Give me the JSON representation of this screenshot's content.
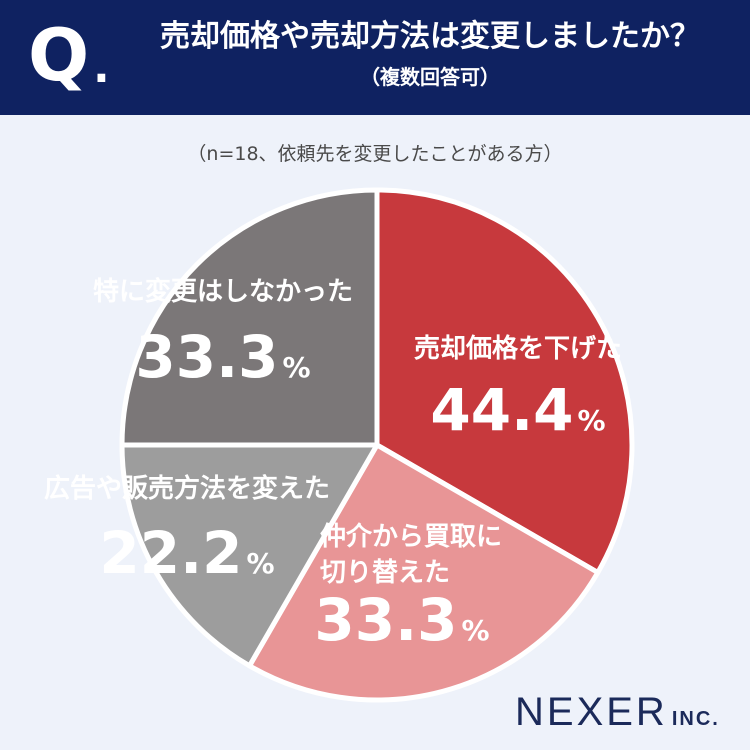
{
  "header": {
    "q_letter": "Q",
    "q_dot": ".",
    "title": "売却価格や売却方法は変更しましたか？",
    "subtitle": "（複数回答可）"
  },
  "note": "（n=18、依頼先を変更したことがある方）",
  "colors": {
    "header_bg": "#0f2261",
    "page_bg": "#eef2fa",
    "slices": [
      "#c7393d",
      "#e89596",
      "#9d9d9d",
      "#7b7778"
    ]
  },
  "chart_data": {
    "type": "pie",
    "slices": [
      {
        "label_lines": [
          "売却価格を下げた"
        ],
        "value": 44.4,
        "display": "44.4",
        "unit": "%",
        "color": "#c7393d"
      },
      {
        "label_lines": [
          "仲介から買取に",
          "切り替えた"
        ],
        "value": 33.3,
        "display": "33.3",
        "unit": "%",
        "color": "#e89596"
      },
      {
        "label_lines": [
          "広告や販売方法を変えた"
        ],
        "value": 22.2,
        "display": "22.2",
        "unit": "%",
        "color": "#9d9d9d"
      },
      {
        "label_lines": [
          "特に変更はしなかった"
        ],
        "value": 33.3,
        "display": "33.3",
        "unit": "%",
        "color": "#7b7778"
      }
    ]
  },
  "logo": {
    "main": "NEXER",
    "sub": "INC."
  }
}
